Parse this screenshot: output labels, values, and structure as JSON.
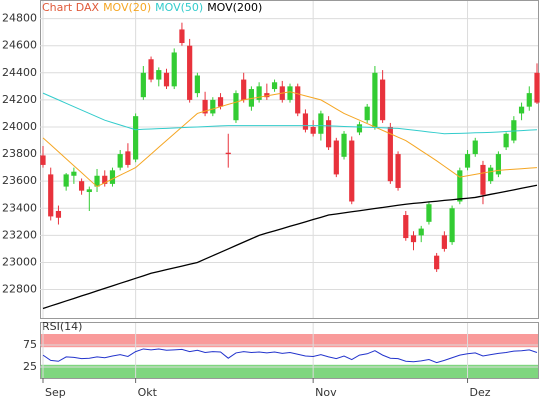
{
  "chart_data": [
    {
      "type": "candlestick",
      "title": "Chart DAX",
      "open": [
        23790,
        23650,
        23380,
        23560,
        23640,
        23600,
        23520,
        23560,
        23640,
        23580,
        23700,
        23820,
        23760,
        24220,
        24500,
        24350,
        24400,
        24300,
        24720,
        24600,
        24250,
        24200,
        24100,
        24220,
        23810,
        24050,
        24350,
        24150,
        24200,
        24250,
        24280,
        24300,
        24200,
        24300,
        24100,
        24000,
        23950,
        24050,
        23900,
        23780,
        23900,
        23960,
        24050,
        24000,
        24350,
        24000,
        23800,
        23350,
        23200,
        23200,
        23300,
        23050,
        23200,
        23150,
        23450,
        23700,
        23800,
        23720,
        23600,
        23650,
        23850,
        23900,
        24100,
        24150,
        24400
      ],
      "high": [
        23860,
        23700,
        23420,
        23660,
        23700,
        23620,
        23560,
        23690,
        23680,
        23700,
        23830,
        23880,
        24100,
        24450,
        24520,
        24440,
        24430,
        24580,
        24770,
        24650,
        24400,
        24260,
        24220,
        24250,
        23950,
        24270,
        24400,
        24300,
        24330,
        24320,
        24350,
        24340,
        24320,
        24320,
        24130,
        24050,
        24120,
        24080,
        23920,
        23970,
        23930,
        24040,
        24170,
        24450,
        24420,
        24030,
        23820,
        23380,
        23230,
        23270,
        23450,
        23070,
        23230,
        23420,
        23700,
        23830,
        23920,
        23750,
        23720,
        23820,
        23960,
        24080,
        24180,
        24300,
        24470
      ],
      "low": [
        23700,
        23310,
        23280,
        23530,
        23580,
        23500,
        23380,
        23520,
        23560,
        23560,
        23680,
        23700,
        23740,
        24200,
        24330,
        24300,
        24280,
        24280,
        24600,
        24180,
        24220,
        24080,
        24080,
        24130,
        23700,
        24030,
        24180,
        24120,
        24180,
        24200,
        24260,
        24180,
        24180,
        24080,
        23960,
        23930,
        23900,
        23830,
        23630,
        23760,
        23430,
        23940,
        24030,
        23980,
        24030,
        23580,
        23530,
        23160,
        23090,
        23150,
        23280,
        22930,
        23080,
        23130,
        23430,
        23680,
        23780,
        23430,
        23580,
        23630,
        23830,
        23880,
        24050,
        24120,
        24170
      ],
      "close": [
        23720,
        23340,
        23330,
        23650,
        23670,
        23530,
        23540,
        23640,
        23580,
        23680,
        23800,
        23720,
        24080,
        24400,
        24350,
        24420,
        24300,
        24550,
        24620,
        24200,
        24380,
        24100,
        24200,
        24150,
        23800,
        24250,
        24200,
        24280,
        24300,
        24220,
        24330,
        24200,
        24300,
        24100,
        23980,
        23950,
        24100,
        23850,
        23650,
        23950,
        23450,
        24020,
        24150,
        24400,
        24050,
        23600,
        23550,
        23180,
        23150,
        23250,
        23430,
        22950,
        23100,
        23400,
        23680,
        23800,
        23900,
        23500,
        23700,
        23800,
        23950,
        24050,
        24150,
        24250,
        24180
      ],
      "up_color": "#33cc33",
      "down_color": "#e8323c",
      "series": [
        {
          "name": "MOV(20)",
          "color": "#f5a623",
          "values": [
            23920,
            23869,
            23817,
            23766,
            23714,
            23663,
            23611,
            23560,
            23588,
            23616,
            23644,
            23672,
            23700,
            23750,
            23800,
            23850,
            23900,
            23950,
            24000,
            24050,
            24100,
            24117,
            24133,
            24150,
            24167,
            24183,
            24200,
            24210,
            24220,
            24230,
            24240,
            24250,
            24260,
            24245,
            24230,
            24215,
            24200,
            24167,
            24133,
            24100,
            24075,
            24050,
            24025,
            24000,
            23975,
            23950,
            23925,
            23900,
            23863,
            23825,
            23788,
            23750,
            23710,
            23670,
            23630,
            23640,
            23650,
            23660,
            23670,
            23680,
            23684,
            23688,
            23692,
            23696,
            23700
          ]
        },
        {
          "name": "MOV(50)",
          "color": "#33cccc",
          "values": [
            24250,
            24225,
            24200,
            24175,
            24150,
            24125,
            24100,
            24075,
            24050,
            24032,
            24015,
            23997,
            23980,
            23983,
            23985,
            23988,
            23990,
            23993,
            23995,
            23998,
            24000,
            24003,
            24005,
            24008,
            24010,
            24010,
            24010,
            24010,
            24010,
            24010,
            24010,
            24010,
            24010,
            24010,
            24010,
            24010,
            24010,
            24008,
            24006,
            24004,
            24002,
            24000,
            23998,
            23996,
            23994,
            23992,
            23990,
            23983,
            23977,
            23970,
            23963,
            23957,
            23950,
            23952,
            23953,
            23955,
            23957,
            23958,
            23960,
            23963,
            23967,
            23970,
            23973,
            23977,
            23980
          ]
        },
        {
          "name": "MOV(200)",
          "color": "#000000",
          "values": [
            22660,
            22679,
            22697,
            22716,
            22734,
            22753,
            22771,
            22790,
            22809,
            22827,
            22846,
            22864,
            22883,
            22901,
            22920,
            22933,
            22947,
            22960,
            22973,
            22987,
            23000,
            23025,
            23050,
            23075,
            23100,
            23125,
            23150,
            23175,
            23200,
            23217,
            23233,
            23250,
            23267,
            23283,
            23300,
            23317,
            23333,
            23350,
            23358,
            23366,
            23374,
            23382,
            23390,
            23398,
            23406,
            23414,
            23422,
            23430,
            23436,
            23441,
            23447,
            23452,
            23458,
            23463,
            23469,
            23474,
            23480,
            23491,
            23503,
            23514,
            23525,
            23536,
            23548,
            23559,
            23570
          ]
        }
      ],
      "ylim": [
        22590,
        24930
      ],
      "yticks": [
        22800,
        23000,
        23200,
        23400,
        23600,
        23800,
        24000,
        24200,
        24400,
        24600,
        24800
      ],
      "grid": true
    },
    {
      "type": "line",
      "title": "RSI(14)",
      "categories": [
        "Sep",
        null,
        null,
        null,
        null,
        null,
        null,
        null,
        null,
        null,
        null,
        null,
        "Okt",
        null,
        null,
        null,
        null,
        null,
        null,
        null,
        null,
        null,
        null,
        null,
        null,
        null,
        null,
        null,
        null,
        null,
        null,
        null,
        null,
        null,
        null,
        "Nov",
        null,
        null,
        null,
        null,
        null,
        null,
        null,
        null,
        null,
        null,
        null,
        null,
        null,
        null,
        null,
        null,
        null,
        null,
        null,
        "Dez",
        null,
        null,
        null,
        null,
        null,
        null,
        null,
        null,
        null
      ],
      "values": [
        52,
        40,
        38,
        48,
        47,
        44,
        45,
        48,
        46,
        50,
        53,
        49,
        60,
        66,
        64,
        66,
        63,
        64,
        65,
        60,
        63,
        58,
        60,
        59,
        45,
        57,
        60,
        58,
        59,
        57,
        59,
        56,
        58,
        54,
        50,
        49,
        53,
        48,
        44,
        50,
        42,
        52,
        55,
        62,
        52,
        45,
        44,
        38,
        37,
        39,
        42,
        35,
        40,
        46,
        52,
        55,
        57,
        50,
        53,
        56,
        58,
        61,
        62,
        64,
        58
      ],
      "color": "#2233cc",
      "bands": [
        {
          "from": 70,
          "to": 100,
          "color": "#f99a9a"
        },
        {
          "from": 0,
          "to": 30,
          "color": "#7fd67f"
        }
      ],
      "ylim": [
        0,
        100
      ],
      "yticks": [
        25,
        75
      ]
    }
  ]
}
